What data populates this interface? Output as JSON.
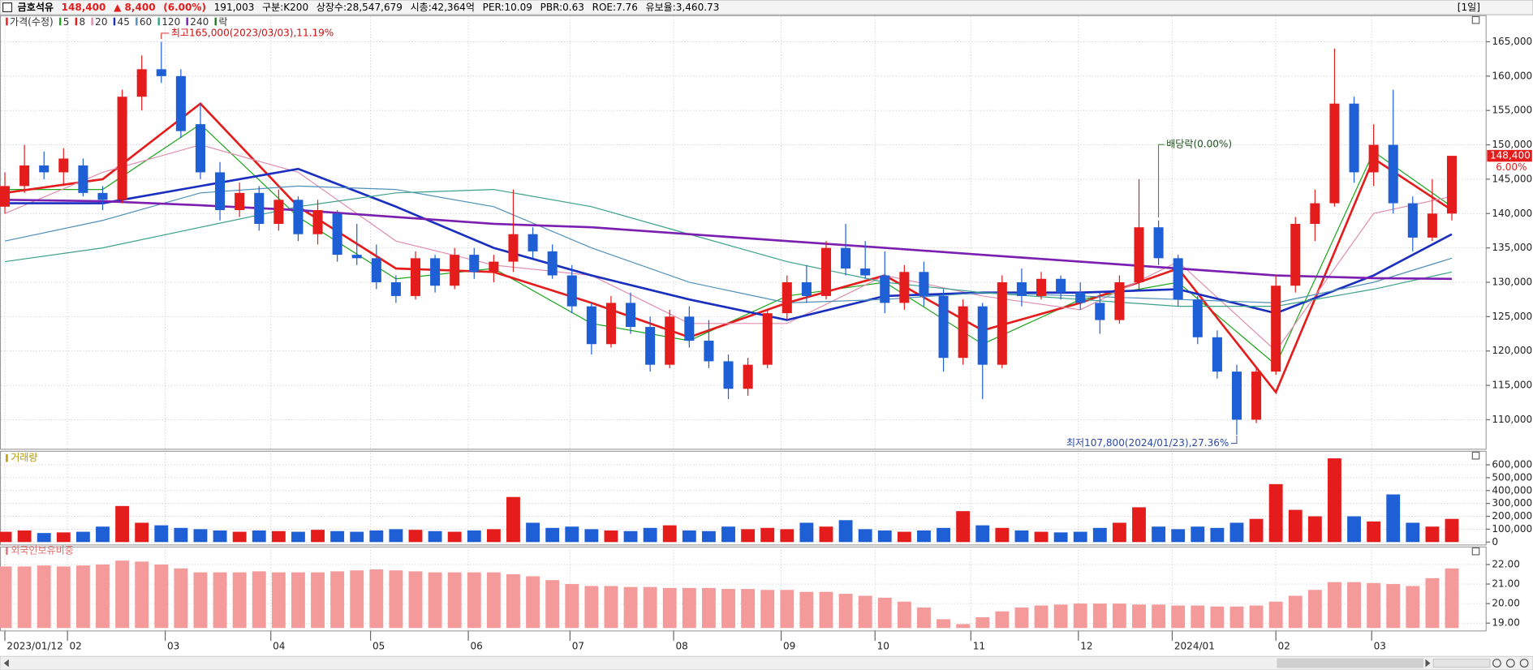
{
  "header": {
    "name": "금호석유",
    "price": "148,400",
    "change": "▲ 8,400",
    "change_pct": "(6.00%)",
    "volume": "191,003",
    "items": [
      "구분:K200",
      "상장수:28,547,679",
      "시총:42,364억",
      "PER:10.09",
      "PBR:0.63",
      "ROE:7.76",
      "유보율:3,460.73"
    ],
    "period": "[1일]"
  },
  "chart_data": [
    {
      "type": "candlestick",
      "name": "가격(수정)",
      "up_color": "#e41c1c",
      "down_color": "#1f5fd6",
      "x": [
        0,
        1,
        2,
        3,
        4,
        5,
        6,
        7,
        8,
        9,
        10,
        11,
        12,
        13,
        14,
        15,
        16,
        17,
        18,
        19,
        20,
        21,
        22,
        23,
        24,
        25,
        26,
        27,
        28,
        29,
        30,
        31,
        32,
        33,
        34,
        35,
        36,
        37,
        38,
        39,
        40,
        41,
        42,
        43,
        44,
        45,
        46,
        47,
        48,
        49,
        50,
        51,
        52,
        53,
        54,
        55,
        56,
        57,
        58,
        59,
        60,
        61,
        62,
        63,
        64,
        65,
        66,
        67,
        68,
        69,
        70,
        71,
        72,
        73,
        74
      ],
      "open": [
        141000,
        144000,
        147000,
        146000,
        147000,
        143000,
        142000,
        157000,
        161000,
        160000,
        153000,
        146000,
        140500,
        143000,
        138500,
        142000,
        137000,
        140000,
        134000,
        133500,
        130000,
        128000,
        133500,
        129500,
        134000,
        131500,
        133000,
        137000,
        134500,
        131000,
        126500,
        121000,
        127000,
        123500,
        118000,
        125000,
        121500,
        118500,
        114500,
        118000,
        125500,
        130000,
        128000,
        135000,
        132000,
        131000,
        127000,
        131500,
        128000,
        119000,
        126500,
        118000,
        130000,
        128000,
        130500,
        128500,
        127000,
        124500,
        130000,
        138000,
        133500,
        127500,
        122000,
        117000,
        110000,
        117000,
        129500,
        138500,
        141500,
        156000,
        146000,
        150000,
        141500,
        136500,
        140000
      ],
      "high": [
        146000,
        150000,
        149000,
        149500,
        148000,
        144000,
        158000,
        163000,
        165000,
        161000,
        156000,
        147500,
        144500,
        144000,
        143500,
        142500,
        142000,
        140500,
        138500,
        135500,
        131000,
        134500,
        134000,
        135000,
        135000,
        134000,
        143500,
        138000,
        135500,
        132500,
        127000,
        128000,
        128500,
        125000,
        126000,
        126500,
        124500,
        119500,
        119000,
        126000,
        131000,
        132500,
        136000,
        138500,
        136000,
        134500,
        132500,
        133000,
        129000,
        127500,
        127000,
        131000,
        132000,
        131500,
        131000,
        130000,
        128500,
        131000,
        145000,
        139000,
        134000,
        128000,
        123000,
        118000,
        117500,
        131000,
        139500,
        143500,
        164000,
        157000,
        153000,
        158000,
        142500,
        145000,
        148400
      ],
      "low": [
        140000,
        143000,
        145000,
        144000,
        142500,
        140500,
        141500,
        155000,
        159000,
        151000,
        145000,
        139000,
        139500,
        137500,
        137500,
        136000,
        135500,
        133000,
        132500,
        129000,
        127000,
        127500,
        128500,
        129000,
        130500,
        130000,
        131500,
        133500,
        130500,
        125500,
        119500,
        120500,
        122500,
        117000,
        117500,
        120500,
        117500,
        113000,
        113500,
        117500,
        124500,
        127000,
        127500,
        131000,
        130500,
        125500,
        126000,
        126500,
        117000,
        118000,
        113000,
        117500,
        126500,
        127500,
        127500,
        126000,
        122500,
        124000,
        129000,
        132500,
        126500,
        121000,
        116000,
        107800,
        109500,
        116500,
        128500,
        136000,
        141000,
        144500,
        144000,
        140000,
        134500,
        136000,
        139000
      ],
      "close": [
        144000,
        147000,
        146000,
        148000,
        143000,
        142000,
        157000,
        161000,
        160000,
        152000,
        146000,
        140500,
        143000,
        138500,
        142000,
        137000,
        140500,
        134000,
        133500,
        130000,
        128000,
        133500,
        129500,
        134000,
        131500,
        133000,
        137000,
        134500,
        131000,
        126500,
        121000,
        127000,
        123500,
        118000,
        125000,
        121500,
        118500,
        114500,
        118000,
        125500,
        130000,
        128000,
        135000,
        132000,
        131000,
        127000,
        131500,
        128000,
        119000,
        126500,
        118000,
        130000,
        128000,
        130500,
        128500,
        127000,
        124500,
        130000,
        138000,
        133500,
        127500,
        122000,
        117000,
        110000,
        117000,
        129500,
        138500,
        141500,
        156000,
        146000,
        150000,
        141500,
        136500,
        140000,
        148400
      ],
      "series": [
        {
          "name": "5",
          "color": "#1aa51a",
          "line_width": 1,
          "x": [
            0,
            5,
            10,
            15,
            20,
            25,
            30,
            35,
            40,
            45,
            50,
            55,
            60,
            65,
            70,
            74
          ],
          "values": [
            143500,
            143500,
            153000,
            139500,
            130500,
            132000,
            124000,
            121500,
            128000,
            130000,
            121000,
            127500,
            130000,
            118000,
            149000,
            141000
          ]
        },
        {
          "name": "8",
          "color": "#e41c1c",
          "line_width": 2.2,
          "x": [
            0,
            5,
            10,
            15,
            20,
            25,
            30,
            35,
            40,
            45,
            50,
            55,
            60,
            65,
            70,
            74
          ],
          "values": [
            143000,
            145000,
            156000,
            141000,
            132000,
            131500,
            127000,
            122000,
            127000,
            131000,
            123000,
            127000,
            132000,
            114000,
            148000,
            140500
          ]
        },
        {
          "name": "20",
          "color": "#e08db0",
          "line_width": 1,
          "x": [
            0,
            5,
            10,
            15,
            20,
            25,
            30,
            35,
            40,
            45,
            50,
            55,
            60,
            65,
            70,
            74
          ],
          "values": [
            140000,
            146000,
            150000,
            146000,
            136000,
            132500,
            131000,
            124000,
            124000,
            131000,
            128000,
            126000,
            133000,
            120000,
            140000,
            142500
          ]
        },
        {
          "name": "45",
          "color": "#1a2fbf",
          "line_width": 2.2,
          "x": [
            0,
            5,
            10,
            15,
            20,
            25,
            30,
            35,
            40,
            45,
            50,
            55,
            60,
            65,
            70,
            74
          ],
          "values": [
            141500,
            141500,
            144000,
            146500,
            141000,
            135000,
            131000,
            127500,
            124500,
            128000,
            128500,
            128500,
            129000,
            125500,
            131000,
            137000
          ]
        },
        {
          "name": "60",
          "color": "#4f8fb8",
          "line_width": 1,
          "x": [
            0,
            5,
            10,
            15,
            20,
            25,
            30,
            35,
            40,
            45,
            50,
            55,
            60,
            65,
            70,
            74
          ],
          "values": [
            136000,
            139000,
            143000,
            144000,
            143500,
            141000,
            135000,
            130000,
            127000,
            127500,
            128500,
            128000,
            127500,
            127000,
            130000,
            133500
          ]
        },
        {
          "name": "120",
          "color": "#3aa08a",
          "line_width": 1,
          "x": [
            0,
            5,
            10,
            15,
            20,
            25,
            30,
            35,
            40,
            45,
            50,
            55,
            60,
            65,
            70,
            74
          ],
          "values": [
            133000,
            135000,
            138000,
            141000,
            143000,
            143500,
            141000,
            137000,
            133000,
            130000,
            128500,
            127500,
            126500,
            126500,
            129000,
            131500
          ]
        },
        {
          "name": "240",
          "color": "#7a1fb0",
          "line_width": 2.2,
          "x": [
            0,
            5,
            10,
            15,
            20,
            25,
            30,
            35,
            40,
            45,
            50,
            55,
            60,
            65,
            70,
            74
          ],
          "values": [
            142000,
            141800,
            141200,
            140500,
            139500,
            138500,
            138000,
            137000,
            136000,
            135000,
            134000,
            133000,
            132000,
            131000,
            130600,
            130500
          ]
        }
      ],
      "xlim": [
        0,
        74
      ],
      "xticks": [
        {
          "value": 0,
          "label": "2023/01/12"
        },
        {
          "value": 3.2,
          "label": "02"
        },
        {
          "value": 8.2,
          "label": "03"
        },
        {
          "value": 13.6,
          "label": "04"
        },
        {
          "value": 18.7,
          "label": "05"
        },
        {
          "value": 23.7,
          "label": "06"
        },
        {
          "value": 28.9,
          "label": "07"
        },
        {
          "value": 34.2,
          "label": "08"
        },
        {
          "value": 39.7,
          "label": "09"
        },
        {
          "value": 44.5,
          "label": "10"
        },
        {
          "value": 49.4,
          "label": "11"
        },
        {
          "value": 54.9,
          "label": "12"
        },
        {
          "value": 59.7,
          "label": "2024/01"
        },
        {
          "value": 65,
          "label": "02"
        },
        {
          "value": 69.9,
          "label": "03"
        }
      ],
      "ylim": [
        105700,
        168800
      ],
      "yticks": [
        {
          "value": 110000,
          "label": "110,000"
        },
        {
          "value": 115000,
          "label": "115,000"
        },
        {
          "value": 120000,
          "label": "120,000"
        },
        {
          "value": 125000,
          "label": "125,000"
        },
        {
          "value": 130000,
          "label": "130,000"
        },
        {
          "value": 135000,
          "label": "135,000"
        },
        {
          "value": 140000,
          "label": "140,000"
        },
        {
          "value": 145000,
          "label": "145,000"
        },
        {
          "value": 150000,
          "label": "150,000"
        },
        {
          "value": 155000,
          "label": "155,000"
        },
        {
          "value": 160000,
          "label": "160,000"
        },
        {
          "value": 165000,
          "label": "165,000"
        }
      ],
      "grid": true,
      "annotations": [
        {
          "text": "최고165,000(2023/03/03),11.19%",
          "x": 8
        },
        {
          "text": "최저107,800(2024/01/23),27.36%",
          "x": 63
        }
      ],
      "ex_dividend": {
        "label": "배당락(0.00%)",
        "legend": "락",
        "x": 59
      },
      "last_label": "148,400",
      "last_change_label": "6.00%"
    },
    {
      "type": "bar",
      "title": "거래량",
      "title_color": "#b59a00",
      "values": [
        80000,
        90000,
        70000,
        75000,
        80000,
        120000,
        280000,
        150000,
        130000,
        110000,
        100000,
        90000,
        80000,
        90000,
        85000,
        80000,
        95000,
        85000,
        80000,
        90000,
        100000,
        95000,
        85000,
        80000,
        90000,
        100000,
        350000,
        150000,
        110000,
        120000,
        100000,
        90000,
        85000,
        110000,
        130000,
        90000,
        85000,
        120000,
        100000,
        110000,
        100000,
        150000,
        120000,
        170000,
        100000,
        90000,
        80000,
        90000,
        110000,
        240000,
        130000,
        110000,
        90000,
        80000,
        75000,
        80000,
        110000,
        150000,
        270000,
        120000,
        100000,
        120000,
        110000,
        150000,
        180000,
        450000,
        250000,
        200000,
        650000,
        200000,
        160000,
        370000,
        150000,
        120000,
        180000
      ],
      "ylim": [
        0,
        660000
      ],
      "yticks": [
        0,
        {
          "value": 100000,
          "label": "100,000"
        },
        {
          "value": 200000,
          "label": "200,000"
        },
        {
          "value": 300000,
          "label": "300,000"
        },
        {
          "value": 400000,
          "label": "400,000"
        },
        {
          "value": 500000,
          "label": "500,000"
        },
        {
          "value": 600000,
          "label": "600,000"
        }
      ],
      "grid": true
    },
    {
      "type": "bar",
      "title": "외국인보유비중",
      "title_color": "#e07070",
      "color": "#f49a9a",
      "values": [
        21.9,
        21.9,
        21.95,
        21.9,
        21.95,
        22.0,
        22.2,
        22.15,
        22.0,
        21.8,
        21.6,
        21.6,
        21.6,
        21.65,
        21.6,
        21.6,
        21.6,
        21.65,
        21.7,
        21.75,
        21.7,
        21.65,
        21.6,
        21.6,
        21.6,
        21.6,
        21.5,
        21.4,
        21.2,
        21.0,
        20.9,
        20.9,
        20.85,
        20.85,
        20.8,
        20.8,
        20.8,
        20.75,
        20.75,
        20.7,
        20.7,
        20.6,
        20.6,
        20.5,
        20.4,
        20.3,
        20.1,
        19.8,
        19.2,
        18.95,
        19.3,
        19.6,
        19.8,
        19.9,
        19.95,
        20.0,
        20.0,
        20.0,
        19.95,
        19.95,
        19.9,
        19.9,
        19.85,
        19.85,
        19.9,
        20.1,
        20.4,
        20.7,
        21.1,
        21.1,
        21.05,
        21.0,
        20.9,
        21.3,
        21.8
      ],
      "ylim": [
        18.75,
        22.75
      ],
      "yticks": [
        {
          "value": 19,
          "label": "19.00"
        },
        {
          "value": 20,
          "label": "20.00"
        },
        {
          "value": 21,
          "label": "21.00"
        },
        {
          "value": 22,
          "label": "22.00"
        }
      ],
      "grid": true
    }
  ]
}
